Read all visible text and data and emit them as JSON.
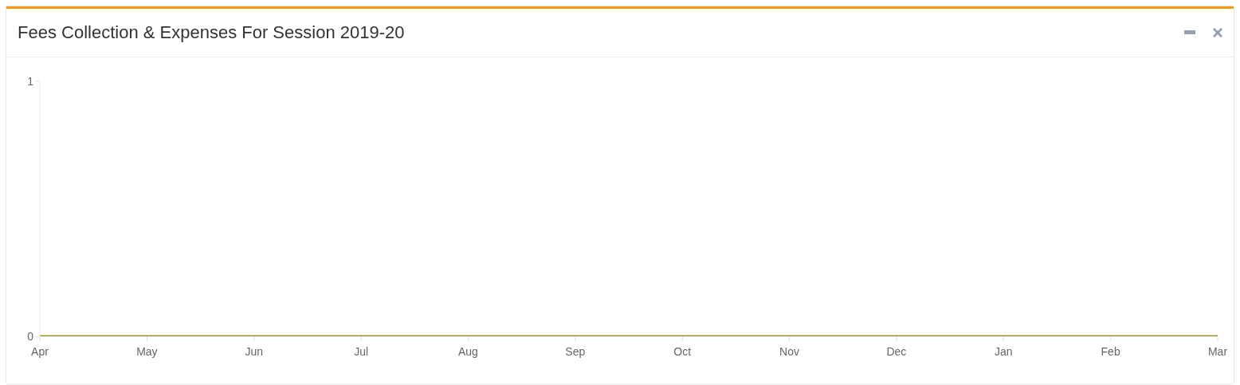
{
  "chart_data": {
    "type": "line",
    "title": "Fees Collection & Expenses For Session 2019-20",
    "categories": [
      "Apr",
      "May",
      "Jun",
      "Jul",
      "Aug",
      "Sep",
      "Oct",
      "Nov",
      "Dec",
      "Jan",
      "Feb",
      "Mar"
    ],
    "series": [
      {
        "color": "#9a9230",
        "values": [
          0,
          0,
          0,
          0,
          0,
          0,
          0,
          0,
          0,
          0,
          0,
          0
        ]
      }
    ],
    "ylim": [
      0,
      1
    ],
    "yticks": [
      0,
      1
    ],
    "grid": false,
    "legend": false,
    "marker": "none"
  }
}
